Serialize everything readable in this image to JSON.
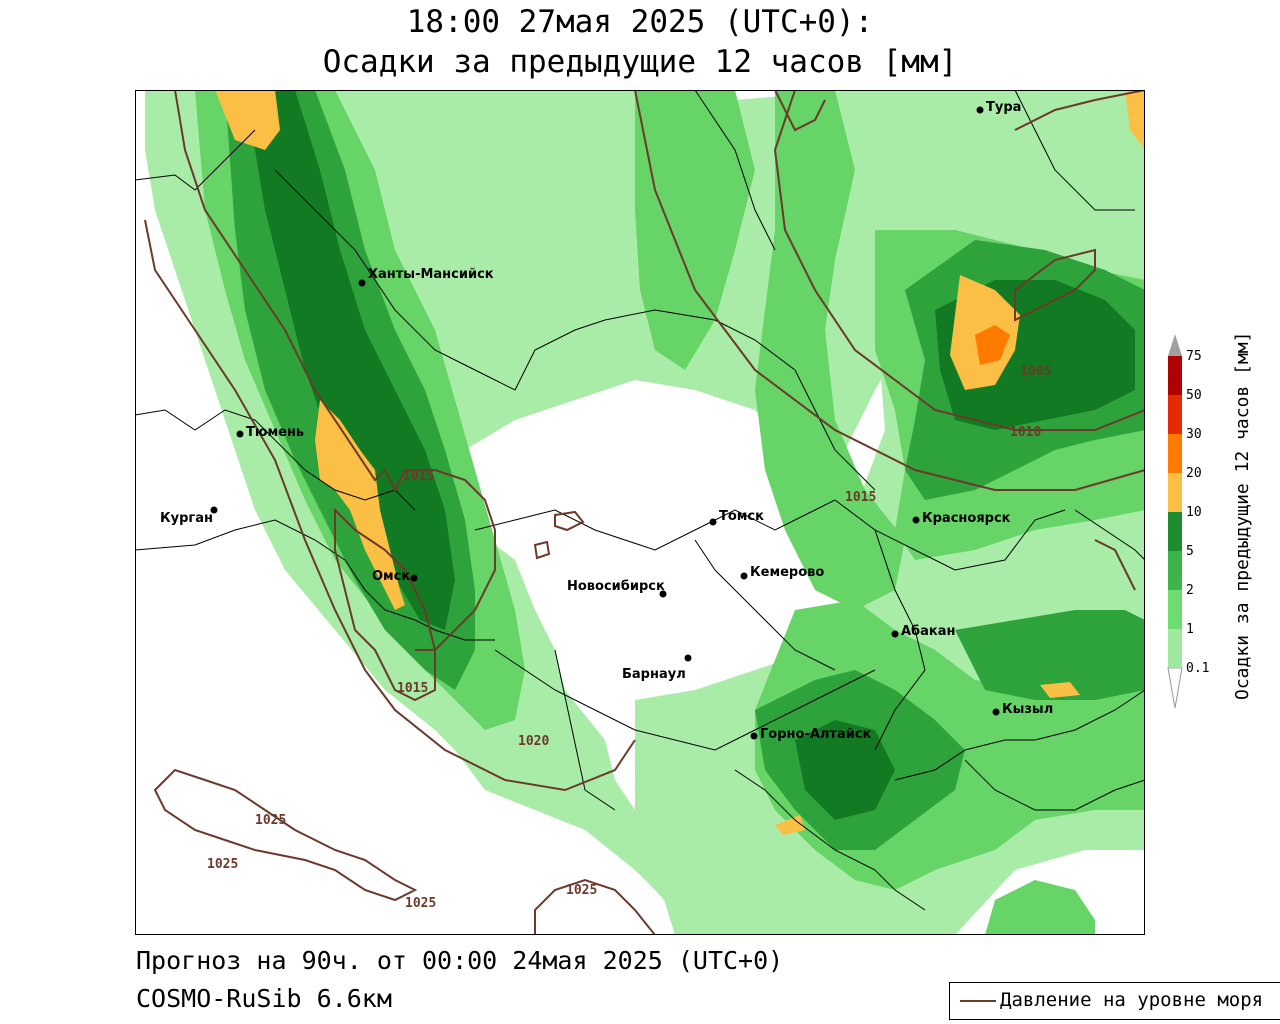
{
  "header": {
    "title_line1": "18:00 27мая 2025 (UTC+0):",
    "title_line2": "Осадки за предыдущие 12 часов [мм]"
  },
  "footer": {
    "forecast": "Прогноз на 90ч. от 00:00 24мая 2025 (UTC+0)",
    "model": "COSMO-RuSib 6.6км"
  },
  "legend": {
    "pressure": "Давление на уровне моря"
  },
  "colorbar": {
    "label": "Осадки за предыдущие 12 часов [мм]",
    "ticks": [
      "0.1",
      "1",
      "2",
      "5",
      "10",
      "20",
      "30",
      "50",
      "75"
    ],
    "colors": [
      "#9fe89f",
      "#6fdc6f",
      "#3cb44b",
      "#1e8c2e",
      "#fbbf45",
      "#ff7a00",
      "#e52a00",
      "#b00000",
      "#a0a0a0"
    ]
  },
  "map": {
    "colors": {
      "light": "#a8eca8",
      "mid": "#66d466",
      "dark": "#2ea33c",
      "darker": "#127a22",
      "orange": "#fbbf45",
      "deep_orange": "#ff7a00",
      "isobar": "#6b3a2a"
    },
    "cities": [
      "Тура",
      "Ханты-Мансийск",
      "Тюмень",
      "Курган",
      "Омск",
      "Новосибирск",
      "Томск",
      "Кемерово",
      "Красноярск",
      "Абакан",
      "Барнаул",
      "Горно-Алтайск",
      "Кызыл"
    ],
    "isobar_labels": [
      "1015",
      "1015",
      "1015",
      "1005",
      "1010",
      "1020",
      "1025",
      "1025",
      "1025",
      "1025"
    ]
  }
}
